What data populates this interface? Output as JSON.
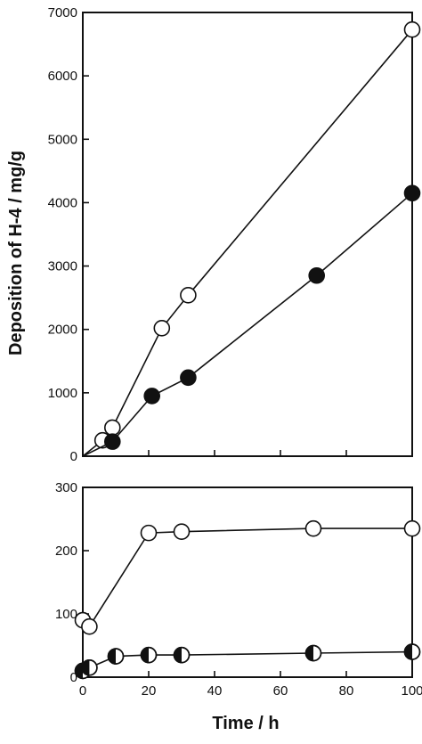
{
  "figure": {
    "ylabel": "Deposition of H-4  /  mg/g",
    "xlabel": "Time  /  h",
    "ink_color": "#111111",
    "paper_color": "#ffffff"
  },
  "chart_data": [
    {
      "type": "line",
      "panel": "top",
      "xlim": [
        0,
        100
      ],
      "ylim": [
        0,
        7000
      ],
      "x_ticks": [],
      "y_ticks": [
        0,
        1000,
        2000,
        3000,
        4000,
        5000,
        6000,
        7000
      ],
      "grid": false,
      "series": [
        {
          "marker": "open-circle",
          "x": [
            0,
            6,
            9,
            24,
            32,
            100
          ],
          "y": [
            0,
            250,
            450,
            2020,
            2540,
            6730
          ]
        },
        {
          "marker": "filled-circle",
          "x": [
            0,
            9,
            21,
            32,
            71,
            100
          ],
          "y": [
            0,
            230,
            950,
            1240,
            2850,
            4150
          ]
        }
      ]
    },
    {
      "type": "line",
      "panel": "bottom",
      "xlim": [
        0,
        100
      ],
      "ylim": [
        0,
        300
      ],
      "x_ticks": [
        0,
        20,
        40,
        60,
        80,
        100
      ],
      "y_ticks": [
        0,
        100,
        200,
        300
      ],
      "grid": false,
      "series": [
        {
          "marker": "open-circle",
          "x": [
            0,
            2,
            20,
            30,
            70,
            100
          ],
          "y": [
            90,
            80,
            228,
            230,
            235,
            235
          ]
        },
        {
          "marker": "half-filled-circle",
          "x": [
            0,
            2,
            10,
            20,
            30,
            70,
            100
          ],
          "y": [
            10,
            15,
            33,
            35,
            35,
            38,
            40
          ]
        }
      ]
    }
  ]
}
